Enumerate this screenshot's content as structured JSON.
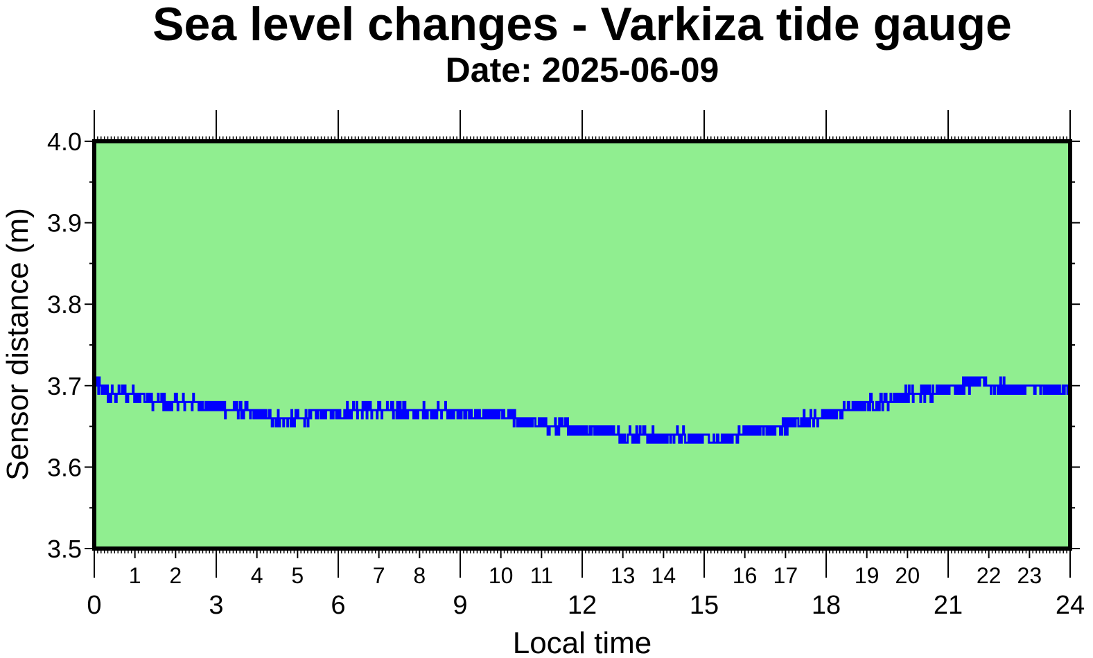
{
  "chart_data": {
    "type": "line",
    "title": "Sea level changes - Varkiza tide gauge",
    "subtitle": "Date: 2025-06-09",
    "xlabel": "Local time",
    "ylabel": "Sensor distance (m)",
    "xlim": [
      0,
      24
    ],
    "ylim": [
      3.5,
      4.0
    ],
    "x_major_ticks": [
      0,
      3,
      6,
      9,
      12,
      15,
      18,
      21,
      24
    ],
    "x_minor_ticks": [
      1,
      2,
      4,
      5,
      7,
      8,
      10,
      11,
      13,
      14,
      16,
      17,
      19,
      20,
      22,
      23
    ],
    "y_ticks": [
      3.5,
      3.6,
      3.7,
      3.8,
      3.9,
      4.0
    ],
    "y_tick_labels": [
      "3.5",
      "3.6",
      "3.7",
      "3.8",
      "3.9",
      "4.0"
    ],
    "grid": false,
    "background_color": "#90ee90",
    "line_color": "#0000ff",
    "series": [
      {
        "x": [
          0.0,
          0.2,
          0.4,
          0.6,
          0.8,
          1.0,
          1.2,
          1.4,
          1.6,
          1.8,
          2.0,
          2.2,
          2.4,
          2.6,
          2.8,
          3.0,
          3.3,
          3.6,
          3.9,
          4.2,
          4.5,
          4.8,
          5.1,
          5.4,
          5.7,
          6.0,
          6.3,
          6.6,
          6.9,
          7.2,
          7.5,
          7.8,
          8.1,
          8.4,
          8.7,
          9.0,
          9.3,
          9.6,
          9.9,
          10.2,
          10.5,
          10.8,
          11.1,
          11.4,
          11.7,
          12.0,
          12.3,
          12.6,
          12.9,
          13.2,
          13.5,
          13.8,
          14.1,
          14.4,
          14.7,
          15.0,
          15.2,
          15.4,
          15.6,
          15.8,
          16.0,
          16.3,
          16.6,
          16.9,
          17.2,
          17.5,
          17.8,
          18.1,
          18.4,
          18.7,
          19.0,
          19.3,
          19.6,
          19.9,
          20.2,
          20.5,
          20.8,
          21.1,
          21.4,
          21.7,
          22.0,
          22.3,
          22.6,
          22.9,
          23.2,
          23.5,
          23.8,
          24.0
        ],
        "y": [
          3.705,
          3.695,
          3.688,
          3.69,
          3.69,
          3.69,
          3.685,
          3.68,
          3.68,
          3.678,
          3.68,
          3.68,
          3.68,
          3.678,
          3.675,
          3.675,
          3.67,
          3.67,
          3.665,
          3.66,
          3.66,
          3.658,
          3.66,
          3.665,
          3.667,
          3.668,
          3.67,
          3.672,
          3.67,
          3.668,
          3.67,
          3.667,
          3.668,
          3.668,
          3.67,
          3.668,
          3.665,
          3.665,
          3.665,
          3.66,
          3.655,
          3.655,
          3.65,
          3.648,
          3.65,
          3.645,
          3.645,
          3.645,
          3.64,
          3.64,
          3.64,
          3.637,
          3.637,
          3.64,
          3.637,
          3.635,
          3.632,
          3.63,
          3.635,
          3.64,
          3.643,
          3.645,
          3.645,
          3.648,
          3.655,
          3.66,
          3.66,
          3.665,
          3.67,
          3.673,
          3.678,
          3.68,
          3.683,
          3.688,
          3.69,
          3.69,
          3.695,
          3.698,
          3.7,
          3.705,
          3.7,
          3.698,
          3.695,
          3.698,
          3.698,
          3.695,
          3.698,
          3.695
        ]
      }
    ]
  }
}
